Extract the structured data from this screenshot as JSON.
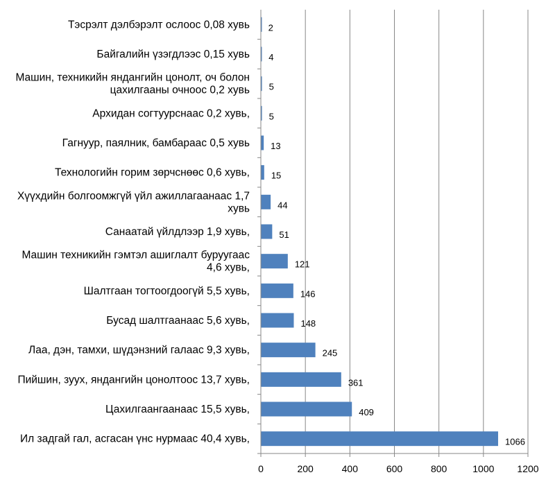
{
  "chart_data": {
    "type": "bar",
    "orientation": "horizontal",
    "categories": [
      "Ил задгай гал, асгасан үнс нурмаас 40,4 хувь,",
      "Цахилгаангаанаас 15,5 хувь,",
      "Пийшин, зуух, яндангийн цонолтоос 13,7 хувь,",
      "Лаа, дэн, тамхи, шүдэнзний галаас 9,3 хувь,",
      "Бусад шалтгаанаас 5,6 хувь,",
      "Шалтгаан тогтоогдоогүй 5,5 хувь,",
      "Машин техникийн гэмтэл ашиглалт буруугаас 4,6 хувь,",
      "Санаатай үйлдлээр 1,9 хувь,",
      "Хүүхдийн болгоомжгүй үйл ажиллагаанаас 1,7 хувь",
      "Технологийн горим зөрчснөөс 0,6 хувь,",
      "Гагнуур, паялник, бамбараас 0,5 хувь",
      "Архидан согтуурснаас 0,2 хувь,",
      "Машин, техникийн яндангийн цонолт, оч болон цахилгааны очноос 0,2 хувь",
      "Байгалийн үзэгдлээс 0,15 хувь",
      "Тэсрэлт дэлбэрэлт ослоос 0,08 хувь"
    ],
    "category_lines": [
      [
        "Ил задгай гал, асгасан үнс нурмаас 40,4 хувь,"
      ],
      [
        "Цахилгаангаанаас 15,5 хувь,"
      ],
      [
        "Пийшин, зуух, яндангийн цонолтоос 13,7 хувь,"
      ],
      [
        "Лаа, дэн, тамхи, шүдэнзний галаас 9,3 хувь,"
      ],
      [
        "Бусад шалтгаанаас 5,6 хувь,"
      ],
      [
        "Шалтгаан тогтоогдоогүй 5,5 хувь,"
      ],
      [
        "Машин техникийн гэмтэл ашиглалт буруугаас",
        "4,6 хувь,"
      ],
      [
        "Санаатай үйлдлээр 1,9 хувь,"
      ],
      [
        "Хүүхдийн болгоомжгүй үйл ажиллагаанаас 1,7",
        "хувь"
      ],
      [
        "Технологийн горим зөрчснөөс 0,6 хувь,"
      ],
      [
        "Гагнуур, паялник, бамбараас 0,5 хувь"
      ],
      [
        "Архидан согтуурснаас 0,2 хувь,"
      ],
      [
        "Машин, техникийн яндангийн цонолт, оч болон",
        "цахилгааны очноос 0,2 хувь"
      ],
      [
        "Байгалийн үзэгдлээс 0,15 хувь"
      ],
      [
        "Тэсрэлт дэлбэрэлт ослоос 0,08 хувь"
      ]
    ],
    "values": [
      1066,
      409,
      361,
      245,
      148,
      146,
      121,
      51,
      44,
      15,
      13,
      5,
      5,
      4,
      2
    ],
    "data_labels": [
      "1066",
      "409",
      "361",
      "245",
      "148",
      "146",
      "121",
      "51",
      "44",
      "15",
      "13",
      "5",
      "5",
      "4",
      "2"
    ],
    "xlim": [
      0,
      1200
    ],
    "x_ticks": [
      0,
      200,
      400,
      600,
      800,
      1000,
      1200
    ],
    "x_tick_labels": [
      "0",
      "200",
      "400",
      "600",
      "800",
      "1000",
      "1200"
    ],
    "grid": "vertical",
    "legend": "none",
    "bar_color": "#4f81bd",
    "grid_color": "#878787"
  }
}
